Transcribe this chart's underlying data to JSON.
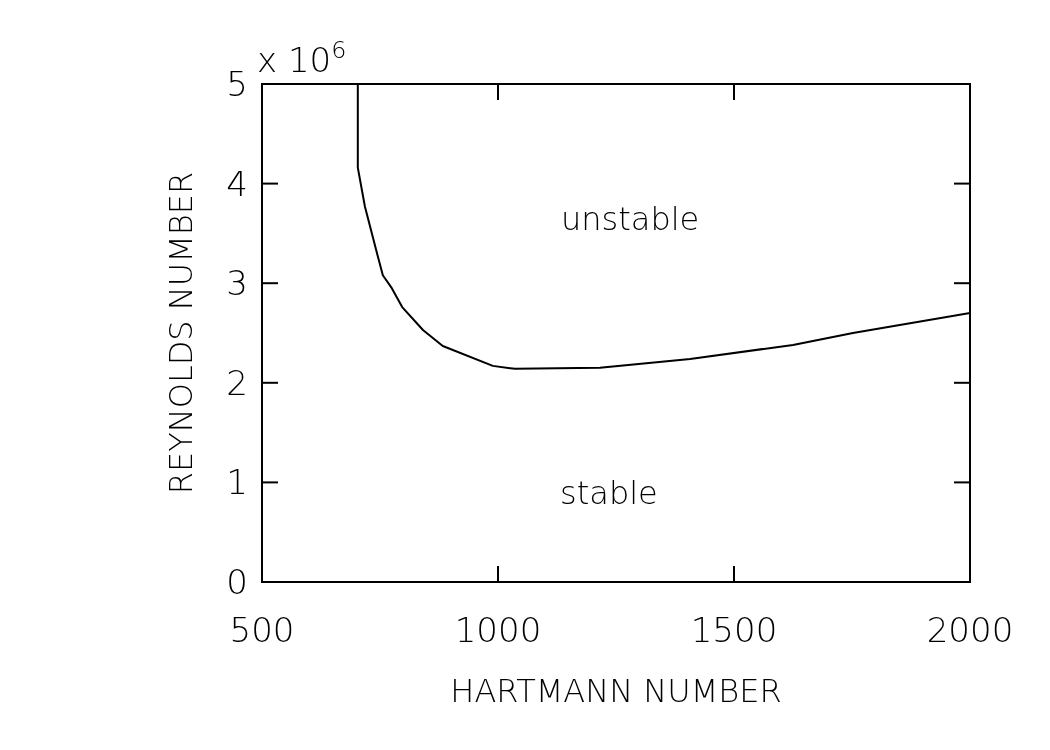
{
  "chart_data": {
    "type": "line",
    "xlabel": "HARTMANN NUMBER",
    "ylabel": "REYNOLDS NUMBER",
    "x": [
      703,
      703,
      718,
      742,
      756,
      775,
      797,
      841,
      883,
      989,
      1036,
      1216,
      1407,
      1625,
      1752,
      2000
    ],
    "series": [
      {
        "color": "#000000",
        "values": [
          5.0,
          4.16,
          3.77,
          3.33,
          3.08,
          2.95,
          2.76,
          2.53,
          2.37,
          2.17,
          2.14,
          2.15,
          2.24,
          2.38,
          2.5,
          2.7
        ]
      }
    ],
    "xlim": [
      500,
      2000
    ],
    "xticks": [
      500,
      1000,
      1500,
      2000
    ],
    "ylim": [
      0,
      5
    ],
    "yticks": [
      0,
      1,
      2,
      3,
      4,
      5
    ],
    "grid": false,
    "marker": "none",
    "line_style": "solid",
    "annotations": [
      "x 10$^{6}$",
      "unstable",
      "stable"
    ]
  }
}
